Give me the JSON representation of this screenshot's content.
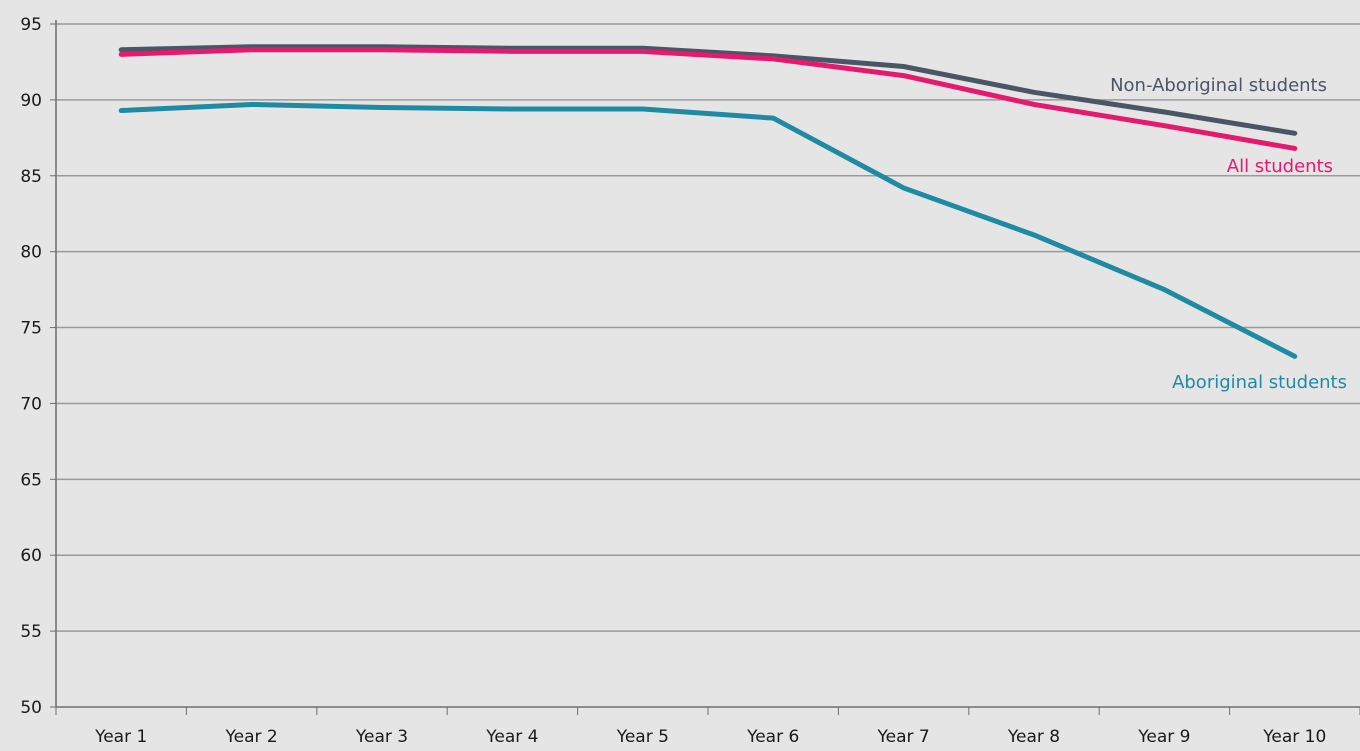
{
  "chart_data": {
    "type": "line",
    "title": "",
    "xlabel": "",
    "ylabel": "",
    "categories": [
      "Year 1",
      "Year 2",
      "Year 3",
      "Year 4",
      "Year 5",
      "Year 6",
      "Year 7",
      "Year 8",
      "Year 9",
      "Year 10"
    ],
    "y_ticks": [
      "50",
      "55",
      "60",
      "65",
      "70",
      "75",
      "80",
      "85",
      "90",
      "95"
    ],
    "ylim": [
      50,
      95
    ],
    "grid": true,
    "legend": "none (series labelled directly at line ends)",
    "series": [
      {
        "name": "Non-Aboriginal students",
        "color": "#4a5566",
        "values": [
          93.3,
          93.5,
          93.5,
          93.4,
          93.4,
          92.9,
          92.2,
          90.5,
          89.2,
          87.8
        ]
      },
      {
        "name": "All students",
        "color": "#e5196e",
        "values": [
          93.0,
          93.3,
          93.3,
          93.2,
          93.2,
          92.7,
          91.6,
          89.7,
          88.3,
          86.8
        ]
      },
      {
        "name": "Aboriginal students",
        "color": "#1f8ba3",
        "values": [
          89.3,
          89.7,
          89.5,
          89.4,
          89.4,
          88.8,
          84.2,
          81.1,
          77.5,
          73.1
        ]
      }
    ]
  },
  "colors": {
    "background": "#e6e5e6",
    "grid": "#9a9a9a",
    "axis": "#6e6e6e",
    "tick_text": "#1a1a1a"
  }
}
